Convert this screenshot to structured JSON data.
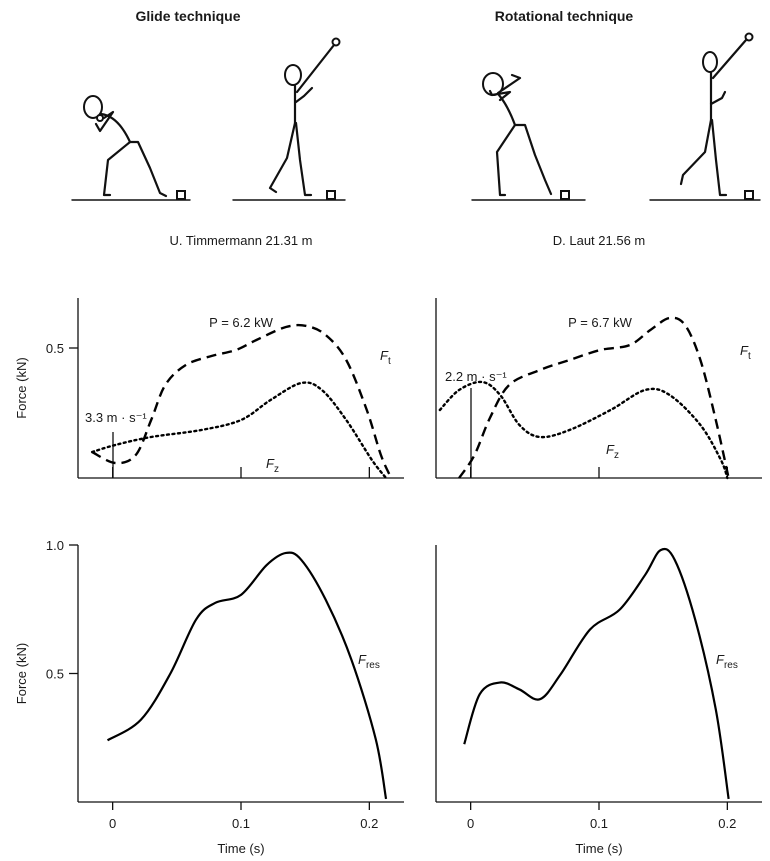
{
  "headers": [
    "Glide technique",
    "Rotational technique"
  ],
  "chart_data": [
    {
      "type": "line",
      "title": "U. Timmermann 21.31 m",
      "ylabel": "Force (kN)",
      "xlim": [
        -0.027,
        0.227
      ],
      "ylim": [
        0.24,
        0.6
      ],
      "xticks": [
        0,
        0.1,
        0.2
      ],
      "xtick_labels": false,
      "yticks": [
        0.5
      ],
      "annotations": [
        "P = 6.2 kW",
        "3.3 m · s⁻¹"
      ],
      "series": [
        {
          "name": "Ft",
          "color": "#000000",
          "dash": "dashed",
          "x": [
            -0.016,
            0.002,
            0.018,
            0.03,
            0.041,
            0.057,
            0.077,
            0.096,
            0.112,
            0.135,
            0.151,
            0.166,
            0.182,
            0.198,
            0.209,
            0.217
          ],
          "values": [
            0.292,
            0.27,
            0.286,
            0.356,
            0.426,
            0.466,
            0.484,
            0.496,
            0.516,
            0.542,
            0.544,
            0.526,
            0.476,
            0.376,
            0.286,
            0.24
          ]
        },
        {
          "name": "Fz",
          "color": "#000000",
          "dash": "dotted",
          "x": [
            -0.016,
            0.002,
            0.03,
            0.069,
            0.1,
            0.123,
            0.147,
            0.163,
            0.182,
            0.202,
            0.213
          ],
          "values": [
            0.292,
            0.306,
            0.322,
            0.336,
            0.356,
            0.396,
            0.43,
            0.416,
            0.356,
            0.276,
            0.24
          ]
        }
      ]
    },
    {
      "type": "line",
      "title": "D. Laut 21.56 m",
      "xlim": [
        -0.027,
        0.227
      ],
      "ylim": [
        0.24,
        0.6
      ],
      "xticks": [
        0,
        0.1,
        0.2
      ],
      "xtick_labels": false,
      "annotations": [
        "P = 6.7 kW",
        "2.2 m · s⁻¹"
      ],
      "series": [
        {
          "name": "Ft",
          "color": "#000000",
          "dash": "dashed",
          "x": [
            -0.009,
            0.003,
            0.015,
            0.03,
            0.054,
            0.077,
            0.101,
            0.124,
            0.14,
            0.155,
            0.167,
            0.179,
            0.191,
            0.201
          ],
          "values": [
            0.24,
            0.286,
            0.36,
            0.426,
            0.456,
            0.476,
            0.496,
            0.506,
            0.536,
            0.56,
            0.546,
            0.476,
            0.356,
            0.24
          ]
        },
        {
          "name": "Fz",
          "color": "#000000",
          "dash": "dotted",
          "x": [
            -0.024,
            -0.009,
            0.009,
            0.023,
            0.038,
            0.054,
            0.077,
            0.109,
            0.136,
            0.155,
            0.179,
            0.195,
            0.2
          ],
          "values": [
            0.376,
            0.416,
            0.432,
            0.406,
            0.346,
            0.322,
            0.336,
            0.376,
            0.416,
            0.406,
            0.346,
            0.276,
            0.24
          ]
        }
      ]
    },
    {
      "type": "line",
      "ylabel": "Force (kN)",
      "xlabel": "Time (s)",
      "xlim": [
        -0.027,
        0.227
      ],
      "ylim": [
        0,
        1.0
      ],
      "xticks": [
        0,
        0.1,
        0.2
      ],
      "xtick_labels": true,
      "yticks": [
        0.5,
        {
          "value": 1.0,
          "label": "1.0"
        }
      ],
      "series": [
        {
          "name": "Fres",
          "color": "#000000",
          "dash": "solid",
          "x": [
            -0.004,
            0.022,
            0.045,
            0.065,
            0.08,
            0.1,
            0.12,
            0.135,
            0.147,
            0.166,
            0.186,
            0.205,
            0.213
          ],
          "values": [
            0.24,
            0.32,
            0.5,
            0.71,
            0.775,
            0.806,
            0.922,
            0.969,
            0.942,
            0.787,
            0.554,
            0.244,
            0.012
          ]
        }
      ]
    },
    {
      "type": "line",
      "xlabel": "Time (s)",
      "xlim": [
        -0.027,
        0.227
      ],
      "ylim": [
        0,
        1.0
      ],
      "xticks": [
        0,
        0.1,
        0.2
      ],
      "xtick_labels": true,
      "series": [
        {
          "name": "Fres",
          "color": "#000000",
          "dash": "solid",
          "x": [
            -0.005,
            0.007,
            0.023,
            0.038,
            0.054,
            0.07,
            0.093,
            0.116,
            0.136,
            0.148,
            0.159,
            0.175,
            0.191,
            0.201
          ],
          "values": [
            0.225,
            0.419,
            0.465,
            0.438,
            0.4,
            0.496,
            0.671,
            0.748,
            0.884,
            0.98,
            0.942,
            0.709,
            0.36,
            0.012
          ]
        }
      ]
    }
  ]
}
